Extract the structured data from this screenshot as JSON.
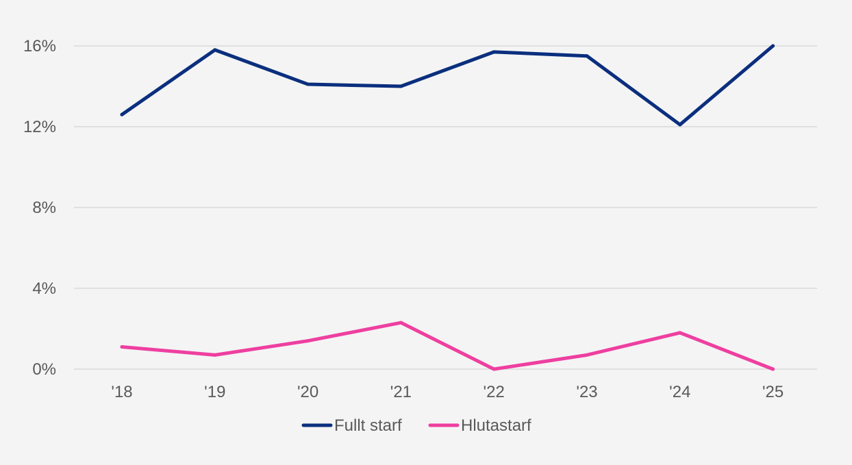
{
  "chart_data": {
    "type": "line",
    "categories": [
      "'18",
      "'19",
      "'20",
      "'21",
      "'22",
      "'23",
      "'24",
      "'25"
    ],
    "series": [
      {
        "name": "Fullt starf",
        "color": "#0b2f7e",
        "values": [
          12.6,
          15.8,
          14.1,
          14.0,
          15.7,
          15.5,
          12.1,
          16.0
        ]
      },
      {
        "name": "Hlutastarf",
        "color": "#ee3fa0",
        "values": [
          1.1,
          0.7,
          1.4,
          2.3,
          0.0,
          0.7,
          1.8,
          0.0
        ]
      }
    ],
    "ylim": [
      0,
      16
    ],
    "yticks": [
      0,
      4,
      8,
      12,
      16
    ],
    "ytick_labels": [
      "0%",
      "4%",
      "8%",
      "12%",
      "16%"
    ],
    "grid": true,
    "legend_position": "bottom",
    "title": "",
    "xlabel": "",
    "ylabel": ""
  }
}
